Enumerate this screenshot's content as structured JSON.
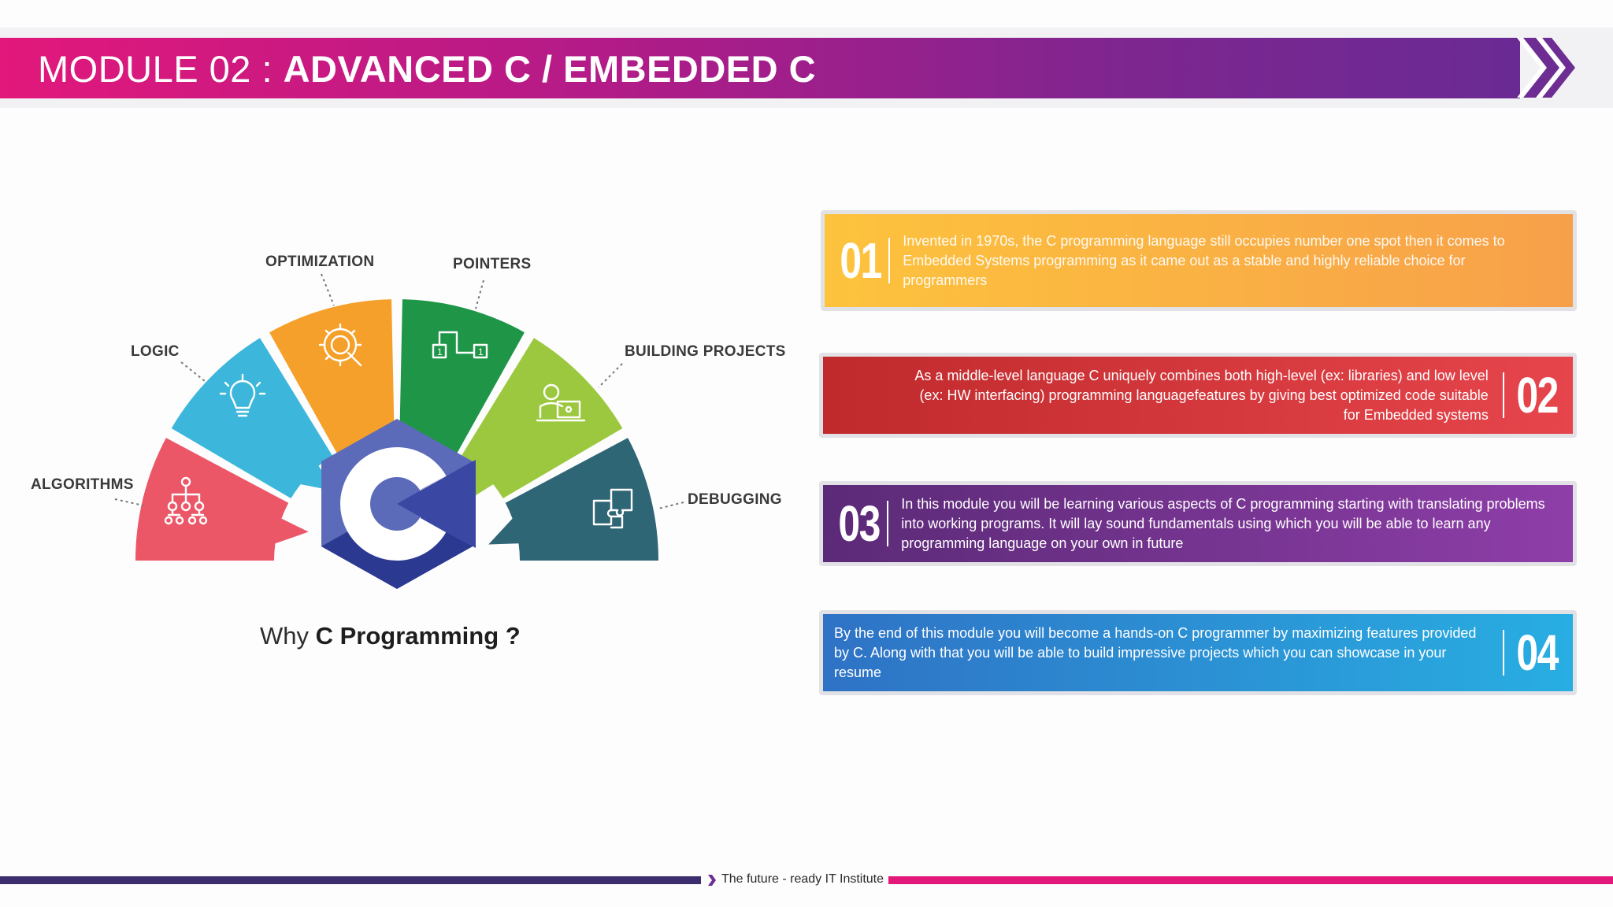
{
  "header": {
    "title_prefix": "MODULE 02 : ",
    "title_main": "ADVANCED C / EMBEDDED C",
    "arrows_icon": "double-chevron-right-icon"
  },
  "semicircle": {
    "center_icon": "c-language-hexagon-logo",
    "segments": [
      {
        "label": "ALGORITHMS",
        "color": "#ec5768",
        "icon": "flowchart-icon"
      },
      {
        "label": "LOGIC",
        "color": "#3cb7db",
        "icon": "lightbulb-icon"
      },
      {
        "label": "OPTIMIZATION",
        "color": "#f5a02a",
        "icon": "gear-magnifier-icon"
      },
      {
        "label": "POINTERS",
        "color": "#1f9548",
        "icon": "linked-boxes-icon"
      },
      {
        "label": "BUILDING PROJECTS",
        "color": "#9cc83f",
        "icon": "developer-at-computer-icon"
      },
      {
        "label": "DEBUGGING",
        "color": "#2f6676",
        "icon": "puzzle-pieces-icon"
      }
    ]
  },
  "caption": {
    "prefix": "Why ",
    "bold": "C Programming ?"
  },
  "cards": [
    {
      "number": "01",
      "text": "Invented in 1970s, the C programming language still occupies number one spot then it comes to Embedded Systems programming as it came out as a stable and highly reliable choice for programmers",
      "color_start": "#fdc33d",
      "color_end": "#f7a04a"
    },
    {
      "number": "02",
      "text": "As a middle-level language C uniquely combines both high-level (ex: libraries) and low level (ex: HW interfacing) programming languagefeatures by giving best optimized code suitable for Embedded systems",
      "color_start": "#c02a2c",
      "color_end": "#e6454c"
    },
    {
      "number": "03",
      "text": "In this module you will be learning various aspects of C programming starting with translating problems into working programs. It will lay sound fundamentals using which you will be able to learn any programming language on your own in future",
      "color_start": "#5b2a77",
      "color_end": "#8e3ea8"
    },
    {
      "number": "04",
      "text": "By the end of this module you will become a hands-on C programmer by maximizing features provided by C. Along with that you will be able to build impressive projects which you can showcase in your resume",
      "color_start": "#2f72c5",
      "color_end": "#28aee2"
    }
  ],
  "footer": {
    "tagline": "The future - ready IT Institute"
  }
}
